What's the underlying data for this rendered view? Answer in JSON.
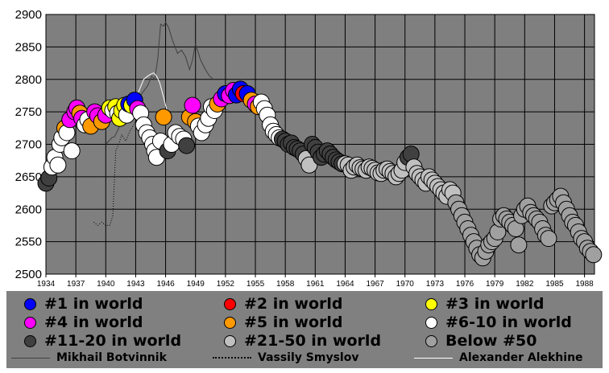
{
  "chart_data": {
    "type": "scatter",
    "title": "",
    "xlabel": "",
    "ylabel": "",
    "xlim": [
      1934,
      1989
    ],
    "ylim": [
      2500,
      2900
    ],
    "grid": true,
    "legend_position": "bottom",
    "yticks": [
      "2500",
      "2550",
      "2600",
      "2650",
      "2700",
      "2750",
      "2800",
      "2850",
      "2900"
    ],
    "xticks": [
      "1934",
      "1937",
      "1940",
      "1943",
      "1946",
      "1949",
      "1952",
      "1955",
      "1958",
      "1961",
      "1964",
      "1967",
      "1970",
      "1973",
      "1976",
      "1979",
      "1982",
      "1985",
      "1988"
    ],
    "rank_categories": [
      {
        "label": "#1 in world",
        "color": "#0000ff"
      },
      {
        "label": "#2 in world",
        "color": "#ff0000"
      },
      {
        "label": "#3 in world",
        "color": "#ffff00"
      },
      {
        "label": "#4 in world",
        "color": "#ff00ff"
      },
      {
        "label": "#5 in world",
        "color": "#ff9900"
      },
      {
        "label": "#6-10 in world",
        "color": "#ffffff"
      },
      {
        "label": "#11-20 in world",
        "color": "#404040"
      },
      {
        "label": "#21-50 in world",
        "color": "#c0c0c0"
      },
      {
        "label": "Below #50",
        "color": "#a0a0a0"
      }
    ],
    "points": [
      [
        1934.0,
        2640,
        6
      ],
      [
        1934.3,
        2648,
        6
      ],
      [
        1934.6,
        2665,
        5
      ],
      [
        1934.9,
        2680,
        5
      ],
      [
        1935.2,
        2668,
        5
      ],
      [
        1935.4,
        2700,
        5
      ],
      [
        1935.6,
        2710,
        5
      ],
      [
        1935.9,
        2725,
        4
      ],
      [
        1936.1,
        2718,
        5
      ],
      [
        1936.4,
        2738,
        3
      ],
      [
        1936.6,
        2690,
        5
      ],
      [
        1936.9,
        2750,
        3
      ],
      [
        1937.1,
        2756,
        3
      ],
      [
        1937.4,
        2748,
        4
      ],
      [
        1937.6,
        2740,
        3
      ],
      [
        1937.9,
        2730,
        5
      ],
      [
        1938.2,
        2738,
        5
      ],
      [
        1938.5,
        2728,
        4
      ],
      [
        1938.9,
        2750,
        3
      ],
      [
        1939.2,
        2744,
        3
      ],
      [
        1939.6,
        2735,
        4
      ],
      [
        1940.0,
        2745,
        3
      ],
      [
        1940.4,
        2756,
        2
      ],
      [
        1940.7,
        2752,
        5
      ],
      [
        1941.0,
        2758,
        2
      ],
      [
        1941.2,
        2748,
        5
      ],
      [
        1941.4,
        2740,
        2
      ],
      [
        1941.6,
        2752,
        2
      ],
      [
        1941.9,
        2760,
        2
      ],
      [
        1942.1,
        2745,
        5
      ],
      [
        1942.3,
        2762,
        0
      ],
      [
        1942.6,
        2760,
        2
      ],
      [
        1942.9,
        2768,
        0
      ],
      [
        1943.2,
        2755,
        3
      ],
      [
        1943.5,
        2748,
        5
      ],
      [
        1943.8,
        2730,
        5
      ],
      [
        1944.1,
        2718,
        5
      ],
      [
        1944.4,
        2710,
        5
      ],
      [
        1944.7,
        2700,
        5
      ],
      [
        1944.9,
        2690,
        5
      ],
      [
        1945.1,
        2680,
        5
      ],
      [
        1945.5,
        2705,
        5
      ],
      [
        1945.8,
        2742,
        4
      ],
      [
        1946.2,
        2690,
        6
      ],
      [
        1946.6,
        2700,
        5
      ],
      [
        1947.0,
        2718,
        5
      ],
      [
        1947.4,
        2712,
        5
      ],
      [
        1947.8,
        2708,
        5
      ],
      [
        1948.1,
        2698,
        6
      ],
      [
        1948.4,
        2742,
        4
      ],
      [
        1948.7,
        2760,
        3
      ],
      [
        1949.0,
        2735,
        4
      ],
      [
        1949.3,
        2728,
        5
      ],
      [
        1949.6,
        2718,
        5
      ],
      [
        1950.0,
        2730,
        5
      ],
      [
        1950.3,
        2740,
        5
      ],
      [
        1950.6,
        2758,
        5
      ],
      [
        1950.9,
        2752,
        5
      ],
      [
        1951.2,
        2762,
        4
      ],
      [
        1951.6,
        2770,
        3
      ],
      [
        1952.0,
        2778,
        0
      ],
      [
        1952.4,
        2775,
        3
      ],
      [
        1952.8,
        2783,
        3
      ],
      [
        1953.1,
        2776,
        0
      ],
      [
        1953.5,
        2785,
        0
      ],
      [
        1953.8,
        2778,
        1
      ],
      [
        1954.2,
        2778,
        0
      ],
      [
        1954.6,
        2768,
        4
      ],
      [
        1955.0,
        2762,
        3
      ],
      [
        1955.3,
        2758,
        4
      ],
      [
        1955.6,
        2765,
        5
      ],
      [
        1955.9,
        2755,
        5
      ],
      [
        1956.2,
        2745,
        5
      ],
      [
        1956.5,
        2730,
        5
      ],
      [
        1956.8,
        2720,
        5
      ],
      [
        1957.1,
        2715,
        5
      ],
      [
        1957.4,
        2710,
        5
      ],
      [
        1957.7,
        2708,
        6
      ],
      [
        1958.0,
        2705,
        6
      ],
      [
        1958.3,
        2700,
        6
      ],
      [
        1958.6,
        2702,
        6
      ],
      [
        1958.9,
        2695,
        6
      ],
      [
        1959.2,
        2693,
        6
      ],
      [
        1959.5,
        2690,
        6
      ],
      [
        1959.8,
        2685,
        6
      ],
      [
        1960.1,
        2678,
        7
      ],
      [
        1960.4,
        2668,
        7
      ],
      [
        1960.7,
        2700,
        6
      ],
      [
        1961.0,
        2695,
        6
      ],
      [
        1961.3,
        2688,
        6
      ],
      [
        1961.6,
        2680,
        6
      ],
      [
        1961.9,
        2685,
        6
      ],
      [
        1962.2,
        2690,
        6
      ],
      [
        1962.5,
        2685,
        6
      ],
      [
        1962.8,
        2680,
        6
      ],
      [
        1963.1,
        2676,
        6
      ],
      [
        1963.4,
        2673,
        6
      ],
      [
        1963.7,
        2670,
        6
      ],
      [
        1964.0,
        2670,
        7
      ],
      [
        1964.3,
        2668,
        7
      ],
      [
        1964.6,
        2660,
        7
      ],
      [
        1964.9,
        2665,
        7
      ],
      [
        1965.2,
        2668,
        7
      ],
      [
        1965.5,
        2664,
        7
      ],
      [
        1965.8,
        2662,
        7
      ],
      [
        1966.1,
        2660,
        7
      ],
      [
        1966.4,
        2665,
        7
      ],
      [
        1966.7,
        2663,
        7
      ],
      [
        1967.0,
        2660,
        7
      ],
      [
        1967.3,
        2656,
        7
      ],
      [
        1967.6,
        2655,
        7
      ],
      [
        1967.9,
        2660,
        7
      ],
      [
        1968.2,
        2662,
        7
      ],
      [
        1968.5,
        2658,
        7
      ],
      [
        1968.8,
        2655,
        7
      ],
      [
        1969.1,
        2650,
        7
      ],
      [
        1969.4,
        2655,
        7
      ],
      [
        1969.7,
        2660,
        7
      ],
      [
        1970.0,
        2672,
        7
      ],
      [
        1970.3,
        2680,
        6
      ],
      [
        1970.6,
        2685,
        6
      ],
      [
        1970.9,
        2665,
        7
      ],
      [
        1971.2,
        2655,
        7
      ],
      [
        1971.5,
        2650,
        7
      ],
      [
        1971.8,
        2645,
        7
      ],
      [
        1972.1,
        2640,
        7
      ],
      [
        1972.4,
        2650,
        7
      ],
      [
        1972.7,
        2645,
        7
      ],
      [
        1973.0,
        2640,
        7
      ],
      [
        1973.3,
        2635,
        7
      ],
      [
        1973.6,
        2630,
        7
      ],
      [
        1973.9,
        2625,
        7
      ],
      [
        1974.2,
        2620,
        7
      ],
      [
        1974.5,
        2630,
        7
      ],
      [
        1974.8,
        2625,
        7
      ],
      [
        1975.1,
        2610,
        8
      ],
      [
        1975.4,
        2600,
        8
      ],
      [
        1975.7,
        2590,
        8
      ],
      [
        1976.0,
        2580,
        8
      ],
      [
        1976.3,
        2570,
        8
      ],
      [
        1976.6,
        2560,
        8
      ],
      [
        1976.9,
        2550,
        8
      ],
      [
        1977.2,
        2540,
        8
      ],
      [
        1977.5,
        2530,
        8
      ],
      [
        1977.8,
        2525,
        8
      ],
      [
        1978.1,
        2535,
        8
      ],
      [
        1978.4,
        2545,
        8
      ],
      [
        1978.7,
        2550,
        8
      ],
      [
        1979.0,
        2555,
        8
      ],
      [
        1979.3,
        2565,
        8
      ],
      [
        1979.6,
        2585,
        8
      ],
      [
        1979.9,
        2590,
        8
      ],
      [
        1980.2,
        2585,
        8
      ],
      [
        1980.5,
        2580,
        8
      ],
      [
        1980.8,
        2575,
        8
      ],
      [
        1981.1,
        2570,
        8
      ],
      [
        1981.4,
        2545,
        8
      ],
      [
        1981.7,
        2590,
        8
      ],
      [
        1982.0,
        2600,
        8
      ],
      [
        1982.3,
        2605,
        8
      ],
      [
        1982.6,
        2595,
        8
      ],
      [
        1982.9,
        2590,
        8
      ],
      [
        1983.2,
        2585,
        8
      ],
      [
        1983.5,
        2580,
        8
      ],
      [
        1983.8,
        2570,
        8
      ],
      [
        1984.1,
        2560,
        8
      ],
      [
        1984.4,
        2555,
        8
      ],
      [
        1984.7,
        2605,
        8
      ],
      [
        1985.0,
        2610,
        8
      ],
      [
        1985.3,
        2615,
        8
      ],
      [
        1985.6,
        2620,
        8
      ],
      [
        1985.9,
        2610,
        8
      ],
      [
        1986.2,
        2600,
        8
      ],
      [
        1986.5,
        2590,
        8
      ],
      [
        1986.8,
        2580,
        8
      ],
      [
        1987.1,
        2575,
        8
      ],
      [
        1987.4,
        2565,
        8
      ],
      [
        1987.7,
        2555,
        8
      ],
      [
        1988.0,
        2550,
        8
      ],
      [
        1988.3,
        2540,
        8
      ],
      [
        1988.6,
        2535,
        8
      ],
      [
        1988.9,
        2530,
        8
      ]
    ],
    "series": [
      {
        "name": "Mikhail Botvinnik",
        "color": "#404040",
        "dash": "solid",
        "x": [
          1940.0,
          1940.3,
          1940.6,
          1940.9,
          1941.3,
          1941.7,
          1942.1,
          1942.4,
          1942.8,
          1943.2,
          1943.7,
          1944.2,
          1944.6,
          1944.9,
          1945.2,
          1945.5,
          1945.8,
          1946.0,
          1946.3,
          1946.7,
          1947.2,
          1947.6,
          1948.0,
          1948.4,
          1948.7,
          1949.0,
          1949.5,
          1950.0,
          1950.4,
          1950.8
        ],
        "y": [
          2700,
          2705,
          2710,
          2712,
          2725,
          2740,
          2750,
          2758,
          2760,
          2768,
          2780,
          2790,
          2805,
          2800,
          2830,
          2885,
          2882,
          2888,
          2880,
          2860,
          2840,
          2845,
          2835,
          2815,
          2830,
          2855,
          2830,
          2815,
          2805,
          2800
        ]
      },
      {
        "name": "Vassily Smyslov",
        "color": "#000000",
        "dash": "dotted",
        "x": [
          1938.8,
          1939.2,
          1939.6,
          1940.0,
          1940.4,
          1940.7,
          1941.0,
          1941.3,
          1941.6,
          1942.0,
          1942.4,
          1942.8,
          1943.2,
          1943.6,
          1944.0
        ],
        "y": [
          2580,
          2575,
          2580,
          2575,
          2575,
          2590,
          2690,
          2700,
          2715,
          2705,
          2720,
          2730,
          2745,
          2740,
          2740
        ]
      },
      {
        "name": "Alexander Alekhine",
        "color": "#ffffff",
        "dash": "solid",
        "x": [
          1942.6,
          1943.0,
          1943.4,
          1943.8,
          1944.2,
          1944.5,
          1944.8,
          1945.1,
          1945.4,
          1945.7,
          1946.0,
          1946.3
        ],
        "y": [
          2760,
          2770,
          2785,
          2800,
          2805,
          2808,
          2810,
          2805,
          2795,
          2778,
          2760,
          2742
        ]
      }
    ]
  }
}
